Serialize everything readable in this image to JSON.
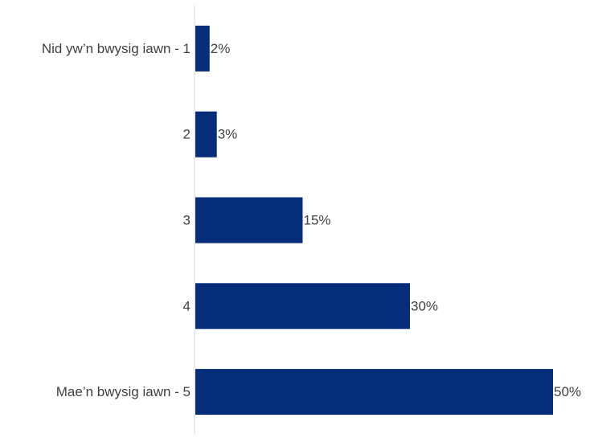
{
  "chart_data": {
    "type": "bar",
    "orientation": "horizontal",
    "title": "",
    "xlabel": "",
    "ylabel": "",
    "categories": [
      "Nid yw’n bwysig iawn - 1",
      "2",
      "3",
      "4",
      "Mae’n bwysig iawn - 5"
    ],
    "values": [
      2,
      3,
      15,
      30,
      50
    ],
    "value_labels": [
      "2%",
      "3%",
      "15%",
      "30%",
      "50%"
    ],
    "unit": "%",
    "xlim": [
      0,
      50
    ],
    "grid": false,
    "legend": "none",
    "colors": {
      "bar": "#062D7A",
      "axis": "#D9D9D9",
      "text": "#404040"
    }
  }
}
